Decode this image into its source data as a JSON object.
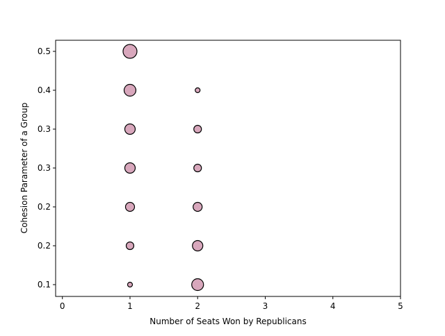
{
  "chart_data": {
    "type": "scatter",
    "xlabel": "Number of Seats Won by Republicans",
    "ylabel": "Cohesion Parameter of a Group",
    "xlim": [
      -0.1,
      5.0
    ],
    "x_ticks": [
      0,
      1,
      2,
      3,
      4,
      5
    ],
    "y_categories": [
      "0.1",
      "0.2",
      "0.2",
      "0.3",
      "0.3",
      "0.4",
      "0.5"
    ],
    "grid": false,
    "marker_color": "#d8a7bc",
    "marker_edge_color": "#000000",
    "points": [
      {
        "x": 1,
        "y_index": 6,
        "size": 5
      },
      {
        "x": 1,
        "y_index": 5,
        "size": 4
      },
      {
        "x": 1,
        "y_index": 4,
        "size": 3
      },
      {
        "x": 1,
        "y_index": 3,
        "size": 3
      },
      {
        "x": 1,
        "y_index": 2,
        "size": 2
      },
      {
        "x": 1,
        "y_index": 1,
        "size": 1
      },
      {
        "x": 1,
        "y_index": 0,
        "size": 0
      },
      {
        "x": 2,
        "y_index": 5,
        "size": 0
      },
      {
        "x": 2,
        "y_index": 4,
        "size": 1
      },
      {
        "x": 2,
        "y_index": 3,
        "size": 1
      },
      {
        "x": 2,
        "y_index": 2,
        "size": 2
      },
      {
        "x": 2,
        "y_index": 1,
        "size": 3
      },
      {
        "x": 2,
        "y_index": 0,
        "size": 4
      }
    ]
  }
}
